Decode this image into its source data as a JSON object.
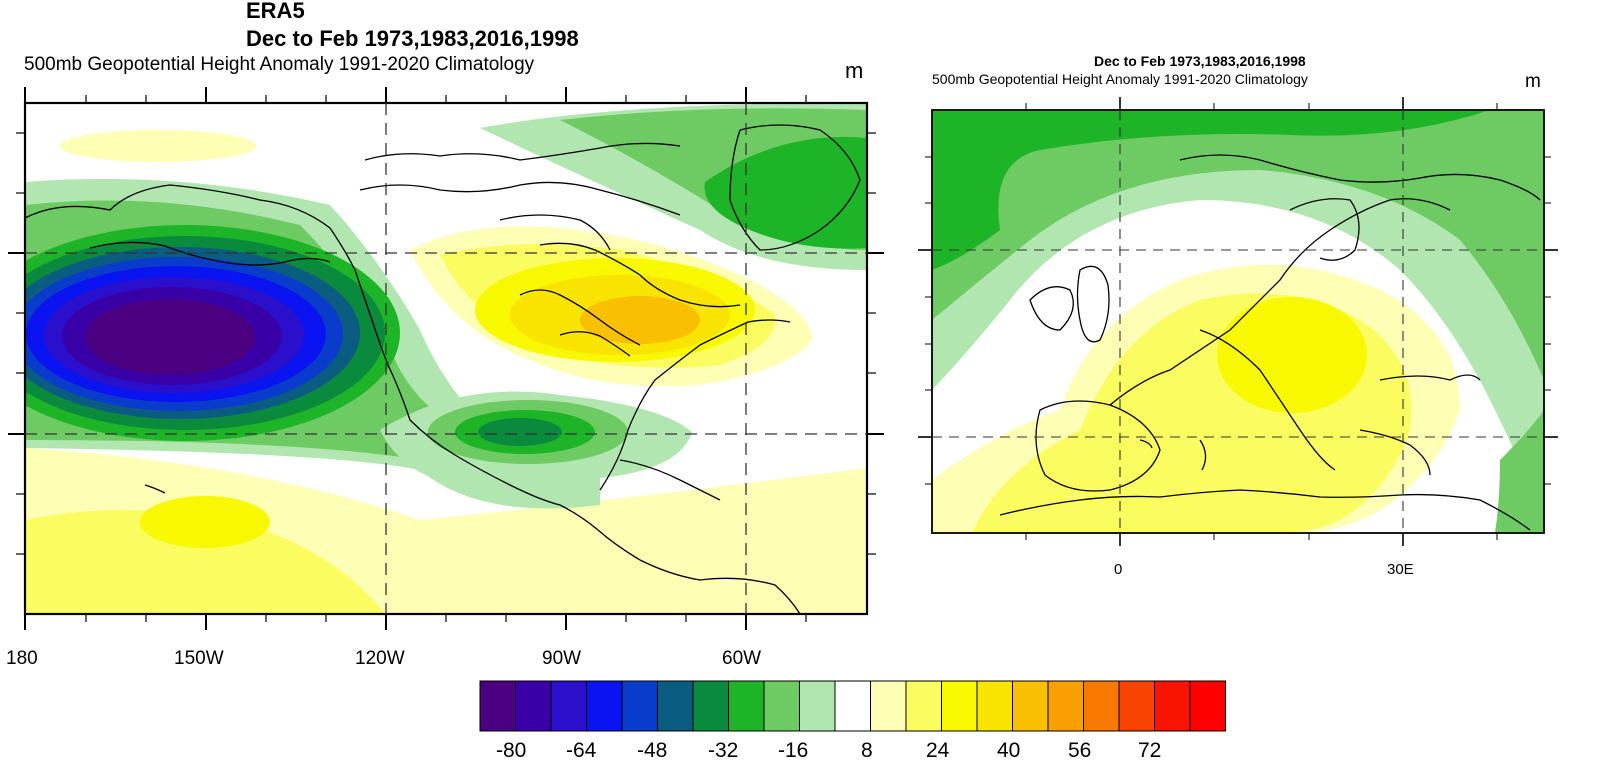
{
  "figure": {
    "source": "ERA5",
    "season_years": "Dec to Feb 1973,1983,2016,1998",
    "variable": "500mb Geopotential Height Anomaly  1991-2020 Climatology",
    "units": "m"
  },
  "left_map": {
    "region": "North America / North Pacific",
    "lon_ticks": [
      "180",
      "150W",
      "120W",
      "90W",
      "60W"
    ]
  },
  "right_map": {
    "region": "Europe / Mediterranean",
    "title": "Dec to Feb 1973,1983,2016,1998",
    "subtitle": "500mb Geopotential Height Anomaly  1991-2020 Climatology",
    "units": "m",
    "lon_ticks": [
      "0",
      "30E"
    ]
  },
  "colorbar": {
    "colors": [
      "#4b0082",
      "#3a00a8",
      "#2a10cc",
      "#0a14f0",
      "#0a3ccc",
      "#0a5c80",
      "#0a8a3c",
      "#1eb428",
      "#6ecb64",
      "#b2e6b0",
      "#ffffff",
      "#fcffb4",
      "#fafc60",
      "#f8f800",
      "#f8e400",
      "#f8c000",
      "#f8a000",
      "#f87800",
      "#f84400",
      "#f81400",
      "#ff0000"
    ],
    "tick_labels": [
      "-80",
      "-64",
      "-48",
      "-32",
      "-16",
      "8",
      "24",
      "40",
      "56",
      "72"
    ]
  },
  "colors": {
    "strong_negative": "#4b0082",
    "negative": "#0a14f0",
    "moderate_negative": "#1eb428",
    "weak_negative": "#b2e6b0",
    "neutral": "#ffffff",
    "weak_positive": "#fcffb4",
    "positive": "#f8f800",
    "strong_positive": "#f8c000"
  }
}
